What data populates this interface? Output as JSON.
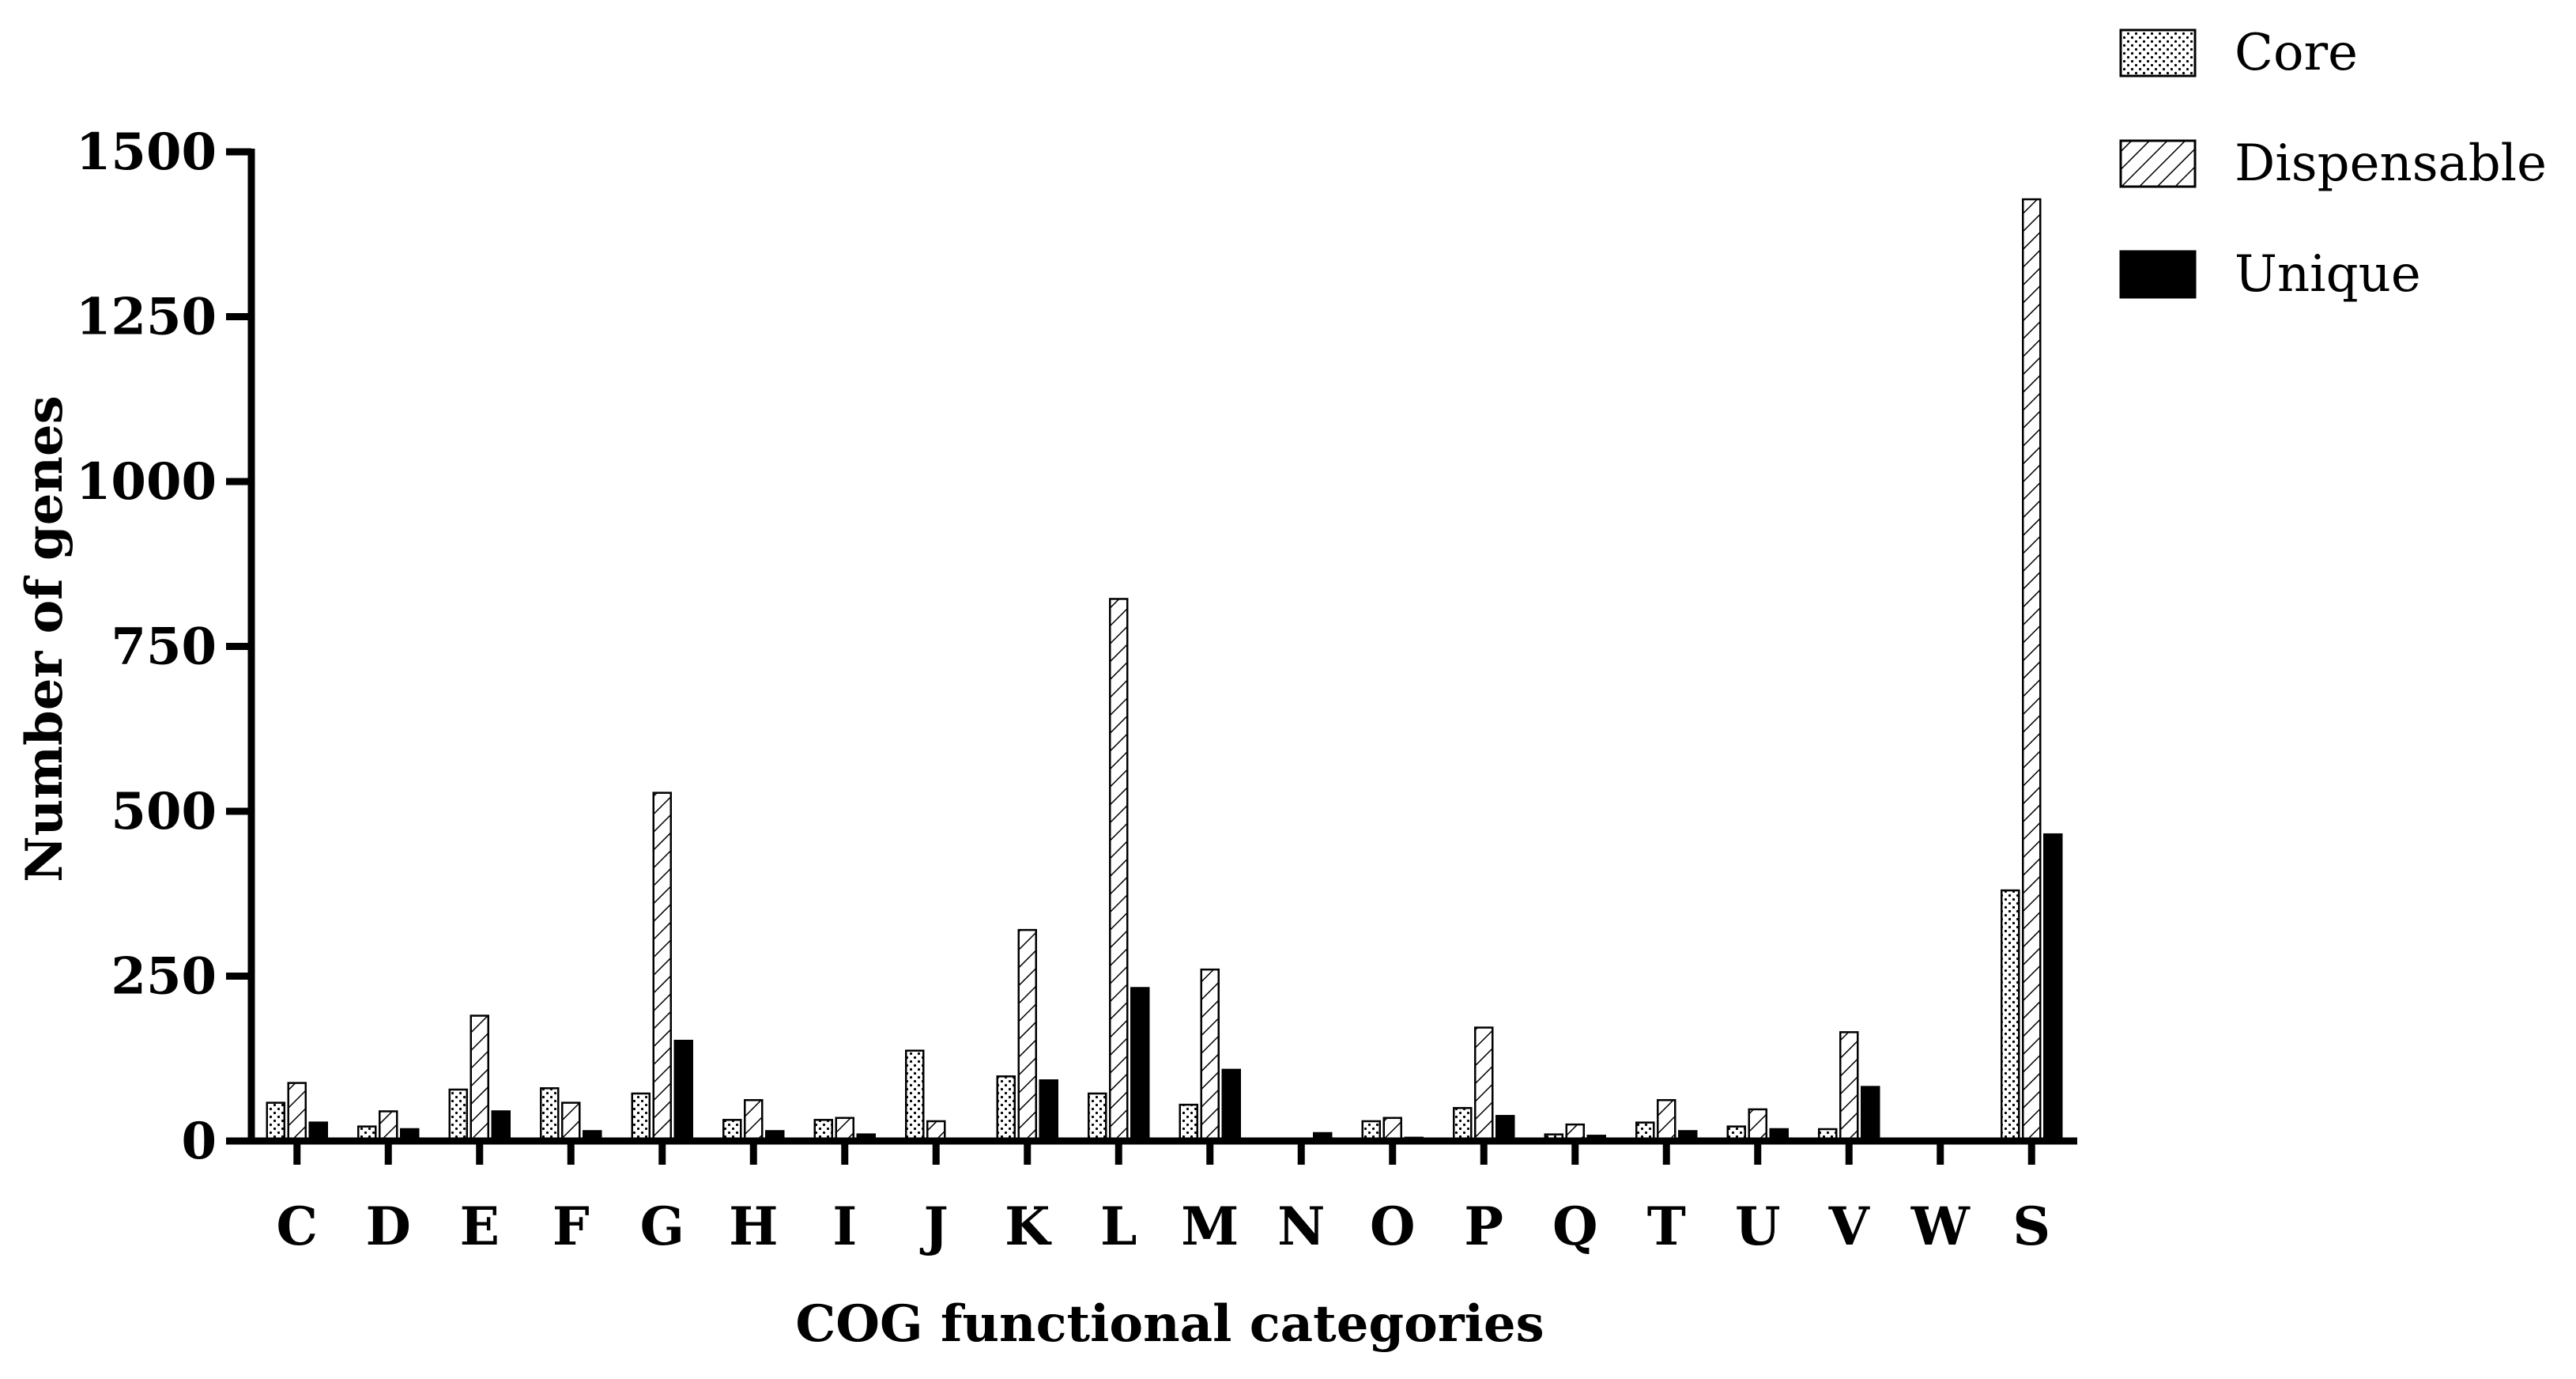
{
  "chart_data": {
    "type": "bar",
    "title": "",
    "xlabel": "COG functional categories",
    "ylabel": "Number of genes",
    "ylim": [
      0,
      1500
    ],
    "yticks": [
      0,
      250,
      500,
      750,
      1000,
      1250,
      1500
    ],
    "ytick_labels": [
      "0",
      "250",
      "500",
      "750",
      "1000",
      "1250",
      "1500"
    ],
    "grid": false,
    "legend_position": "top-right",
    "categories": [
      "C",
      "D",
      "E",
      "F",
      "G",
      "H",
      "I",
      "J",
      "K",
      "L",
      "M",
      "N",
      "O",
      "P",
      "Q",
      "T",
      "U",
      "V",
      "W",
      "S"
    ],
    "series": [
      {
        "name": "Core",
        "pattern": "dotted",
        "values": [
          58,
          22,
          78,
          80,
          72,
          32,
          32,
          137,
          98,
          72,
          55,
          3,
          30,
          50,
          10,
          28,
          22,
          18,
          1,
          380
        ]
      },
      {
        "name": "Dispensable",
        "pattern": "hatched",
        "values": [
          88,
          45,
          190,
          58,
          528,
          62,
          35,
          30,
          320,
          822,
          260,
          2,
          35,
          172,
          25,
          62,
          48,
          165,
          1,
          1428
        ]
      },
      {
        "name": "Unique",
        "pattern": "solid",
        "values": [
          28,
          18,
          45,
          15,
          152,
          15,
          10,
          2,
          92,
          232,
          108,
          12,
          5,
          38,
          8,
          15,
          18,
          82,
          1,
          465
        ]
      }
    ],
    "colors": {
      "axis": "#000000",
      "bar_edge": "#000000",
      "unique_fill": "#000000",
      "background": "#ffffff"
    }
  }
}
